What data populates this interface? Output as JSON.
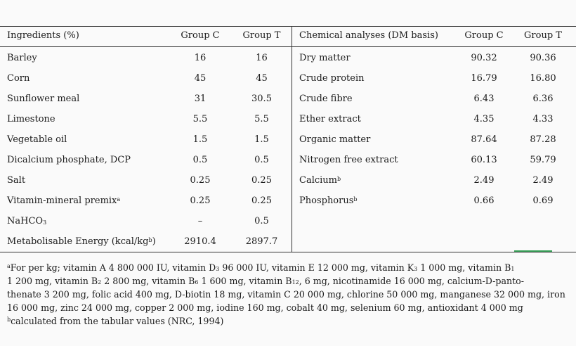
{
  "left_table": {
    "headers": {
      "ingredient": "Ingredients (%)",
      "group_c": "Group C",
      "group_t": "Group T"
    },
    "rows": [
      {
        "name": "Barley",
        "c": "16",
        "t": "16"
      },
      {
        "name": "Corn",
        "c": "45",
        "t": "45"
      },
      {
        "name": "Sunflower meal",
        "c": "31",
        "t": "30.5"
      },
      {
        "name": "Limestone",
        "c": "5.5",
        "t": "5.5"
      },
      {
        "name": "Vegetable oil",
        "c": "1.5",
        "t": "1.5"
      },
      {
        "name": "Dicalcium phosphate, DCP",
        "c": "0.5",
        "t": "0.5"
      },
      {
        "name": "Salt",
        "c": "0.25",
        "t": "0.25"
      },
      {
        "name": "Vitamin-mineral premix",
        "sup": "a",
        "c": "0.25",
        "t": "0.25"
      },
      {
        "name": "NaHCO",
        "sub": "3",
        "c": "–",
        "t": "0.5"
      },
      {
        "name": "Metabolisable Energy (kcal/kg",
        "sup": "b",
        "tail": ")",
        "c": "2910.4",
        "t": "2897.7"
      }
    ]
  },
  "right_table": {
    "headers": {
      "analysis": "Chemical analyses (DM basis)",
      "group_c": "Group C",
      "group_t": "Group T"
    },
    "rows": [
      {
        "name": "Dry matter",
        "c": "90.32",
        "t": "90.36"
      },
      {
        "name": "Crude protein",
        "c": "16.79",
        "t": "16.80"
      },
      {
        "name": "Crude fibre",
        "c": "6.43",
        "t": "6.36"
      },
      {
        "name": "Ether extract",
        "c": "4.35",
        "t": "4.33"
      },
      {
        "name": "Organic matter",
        "c": "87.64",
        "t": "87.28"
      },
      {
        "name": "Nitrogen free extract",
        "c": "60.13",
        "t": "59.79"
      },
      {
        "name": "Calcium",
        "sup": "b",
        "c": "2.49",
        "t": "2.49"
      },
      {
        "name": "Phosphorus",
        "sup": "b",
        "c": "0.66",
        "t": "0.69"
      }
    ]
  },
  "footnotes": {
    "a_mark": "a",
    "a_p1": "For per kg; vitamin A 4 800 000 IU, vitamin D",
    "a_s1": "3",
    "a_p2": " 96 000 IU, vitamin E 12 000 mg, vitamin K",
    "a_s2": "3",
    "a_p3": " 1 000 mg, vitamin B",
    "a_s3": "1",
    "a_line2_p1": "1 200 mg, vitamin B",
    "a_line2_s1": "2",
    "a_line2_p2": " 2 800 mg, vitamin B",
    "a_line2_s2": "6",
    "a_line2_p3": " 1 600 mg, vitamin B",
    "a_line2_s3": "12",
    "a_line2_p4": ", 6 mg, nicotinamide 16 000 mg, calcium-D-panto-",
    "a_line3": "thenate 3 200 mg, folic acid 400 mg, D-biotin 18 mg, vitamin C 20 000 mg, chlorine 50 000 mg, manganese 32 000 mg, iron",
    "a_line4": "16 000 mg, zinc 24 000 mg, copper 2 000 mg, iodine 160 mg, cobalt 40 mg, selenium 60 mg, antioxidant 4 000 mg",
    "b_mark": "b",
    "b_text": "calculated from the tabular values (NRC, 1994)"
  }
}
